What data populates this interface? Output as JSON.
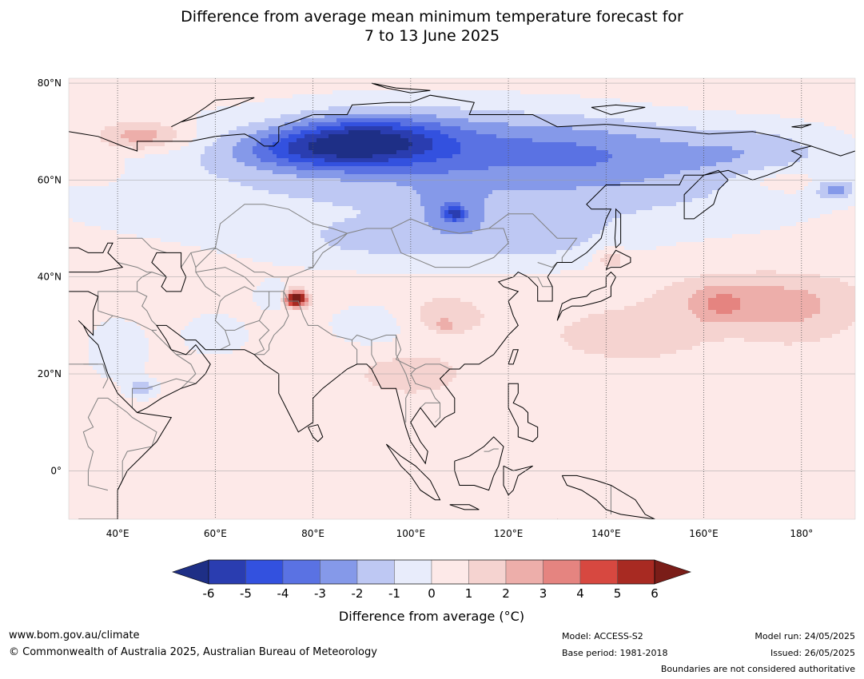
{
  "title": {
    "line1": "Difference from average mean minimum temperature forecast for",
    "line2": "7 to 13 June 2025"
  },
  "map": {
    "lon_range": [
      30,
      191
    ],
    "lat_range": [
      -10,
      81
    ],
    "lat_labels": [
      {
        "lat": 80,
        "text": "80°N"
      },
      {
        "lat": 60,
        "text": "60°N"
      },
      {
        "lat": 40,
        "text": "40°N"
      },
      {
        "lat": 20,
        "text": "20°N"
      },
      {
        "lat": 0,
        "text": "0°"
      }
    ],
    "lon_labels": [
      {
        "lon": 40,
        "text": "40°E"
      },
      {
        "lon": 60,
        "text": "60°E"
      },
      {
        "lon": 80,
        "text": "80°E"
      },
      {
        "lon": 100,
        "text": "100°E"
      },
      {
        "lon": 120,
        "text": "120°E"
      },
      {
        "lon": 140,
        "text": "140°E"
      },
      {
        "lon": 160,
        "text": "160°E"
      },
      {
        "lon": 180,
        "text": "180°"
      }
    ],
    "default_anomaly": 0.5
  },
  "colorbar": {
    "ticks": [
      "-6",
      "-5",
      "-4",
      "-3",
      "-2",
      "-1",
      "0",
      "1",
      "2",
      "3",
      "4",
      "5",
      "6"
    ],
    "colors": [
      "#1e2f86",
      "#2a3db0",
      "#3351df",
      "#5a72e3",
      "#8599e9",
      "#bec8f3",
      "#e8ecfb",
      "#fde9e8",
      "#f5d3d0",
      "#edaeaa",
      "#e58480",
      "#d74840",
      "#a82a22",
      "#7a1d18"
    ],
    "label": "Difference from average (°C)"
  },
  "footer": {
    "website": "www.bom.gov.au/climate",
    "copyright": "© Commonwealth of Australia 2025, Australian Bureau of Meteorology",
    "model": "Model: ACCESS-S2",
    "base_period": "Base period: 1981-2018",
    "model_run": "Model run: 24/05/2025",
    "issued": "Issued: 26/05/2025",
    "disclaimer": "Boundaries are not considered authoritative"
  },
  "colors": {
    "coast": "#000000",
    "borders": "#808080",
    "gridlines": "#555555"
  }
}
